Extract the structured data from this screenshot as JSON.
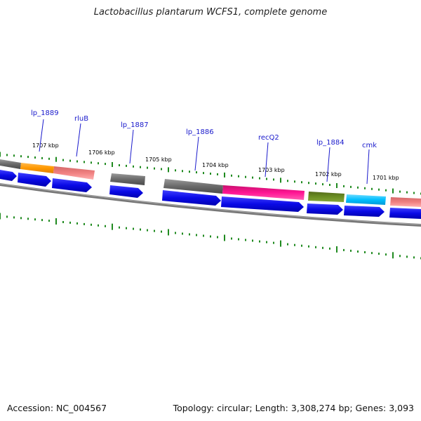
{
  "title": "Lactobacillus plantarum WCFS1, complete genome",
  "footer": {
    "accession": "Accession: NC_004567",
    "summary": "Topology: circular; Length: 3,308,274 bp; Genes: 3,093"
  },
  "gene_labels": [
    "lp_1889",
    "rluB",
    "lp_1887",
    "lp_1886",
    "recQ2",
    "lp_1884",
    "cmk"
  ],
  "kbp_labels": [
    "1707 kbp",
    "1706 kbp",
    "1705 kbp",
    "1704 kbp",
    "1703 kbp",
    "1702 kbp",
    "1701 kbp"
  ],
  "colors": {
    "gene_label": "#1a1acc",
    "cds": "#0a0ae6",
    "backbone": "#888888",
    "tick": "#1f8a1f",
    "orange": "#ff9900",
    "salmon": "#f08080",
    "gray": "#6a6a6a",
    "magenta": "#ff1493",
    "olive": "#6b8e23",
    "cyan": "#00bfff"
  }
}
